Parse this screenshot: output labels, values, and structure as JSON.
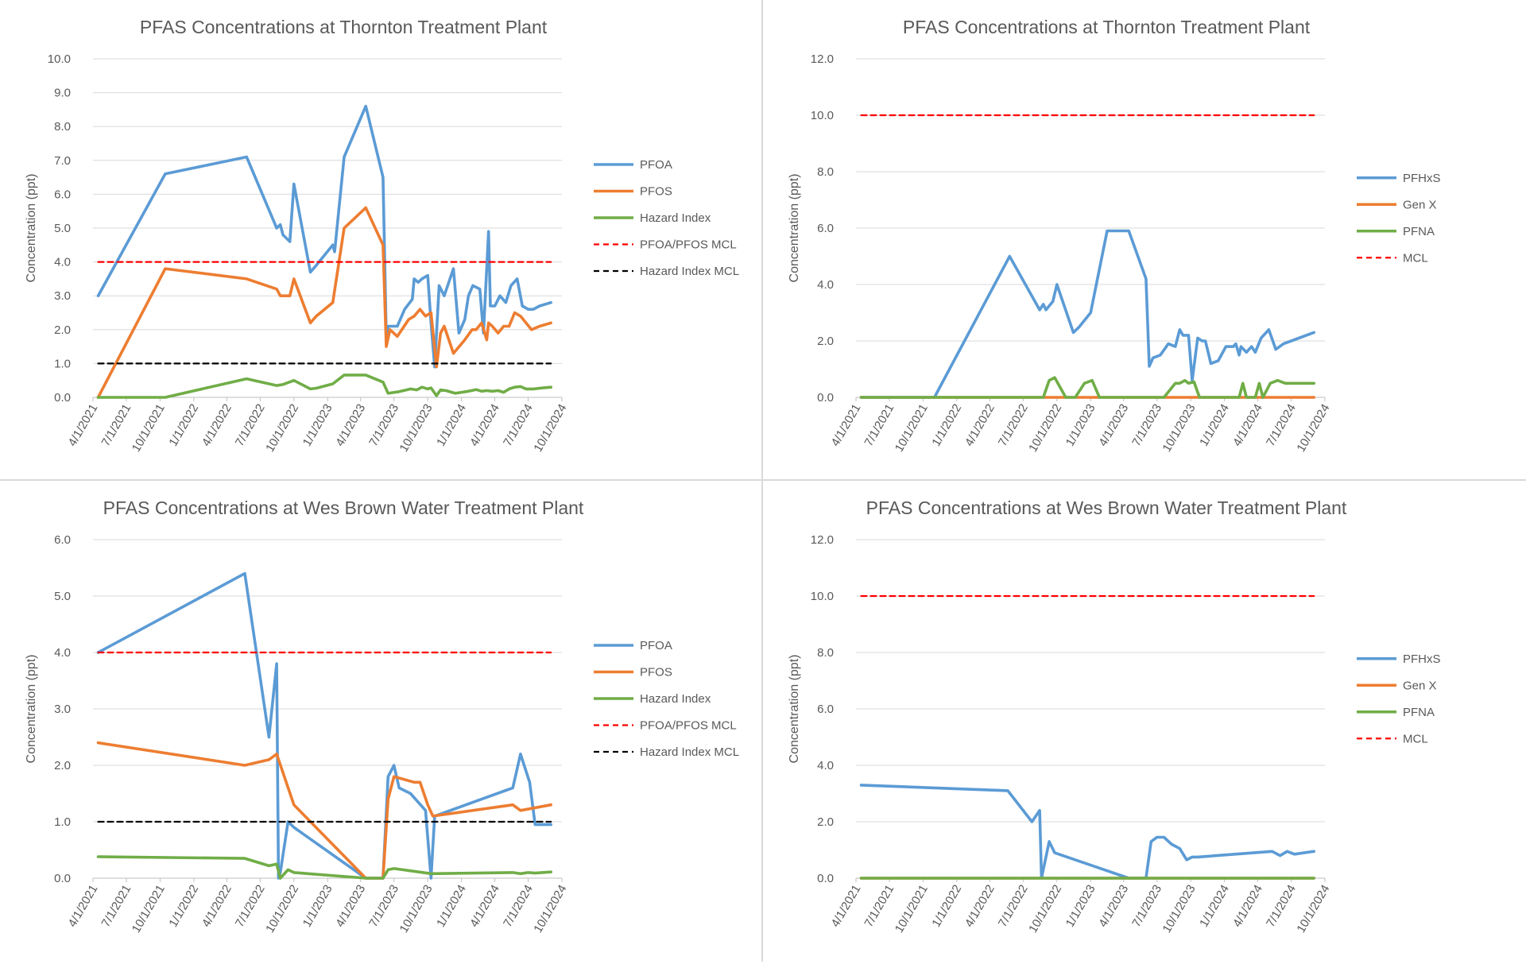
{
  "chart_data": [
    {
      "type": "line",
      "title": "PFAS Concentrations at Thornton Treatment Plant",
      "xlabel": "",
      "ylabel": "Concentration (ppt)",
      "ylim": [
        0,
        10
      ],
      "ytick_step": 1,
      "ytick_labels": [
        "0.0",
        "1.0",
        "2.0",
        "3.0",
        "4.0",
        "5.0",
        "6.0",
        "7.0",
        "8.0",
        "9.0",
        "10.0"
      ],
      "xlim": [
        "4/1/2021",
        "10/1/2024"
      ],
      "xtick_labels": [
        "4/1/2021",
        "7/1/2021",
        "10/1/2021",
        "1/1/2022",
        "4/1/2022",
        "7/1/2022",
        "10/1/2022",
        "1/1/2023",
        "4/1/2023",
        "7/1/2023",
        "10/1/2023",
        "1/1/2024",
        "4/1/2024",
        "7/1/2024",
        "10/1/2024"
      ],
      "gridlines": "horizontal",
      "legend_position": "right",
      "series": [
        {
          "name": "PFOA",
          "color": "#5b9bd5",
          "style": "solid",
          "x": [
            "2021-04-15",
            "2021-10-15",
            "2022-05-25",
            "2022-08-15",
            "2022-08-25",
            "2022-09-01",
            "2022-09-20",
            "2022-10-01",
            "2022-11-15",
            "2022-12-01",
            "2023-01-15",
            "2023-01-20",
            "2023-02-15",
            "2023-04-15",
            "2023-06-01",
            "2023-06-10",
            "2023-06-15",
            "2023-06-25",
            "2023-07-10",
            "2023-07-30",
            "2023-08-20",
            "2023-08-25",
            "2023-09-05",
            "2023-09-15",
            "2023-10-01",
            "2023-10-10",
            "2023-10-20",
            "2023-11-01",
            "2023-11-15",
            "2023-12-10",
            "2023-12-25",
            "2024-01-10",
            "2024-01-20",
            "2024-02-01",
            "2024-02-20",
            "2024-03-01",
            "2024-03-15",
            "2024-03-20",
            "2024-04-01",
            "2024-04-15",
            "2024-05-01",
            "2024-05-15",
            "2024-06-01",
            "2024-06-15",
            "2024-07-01",
            "2024-07-15",
            "2024-08-01",
            "2024-09-01"
          ],
          "y": [
            3.0,
            6.6,
            7.1,
            5.0,
            5.1,
            4.8,
            4.6,
            6.3,
            3.7,
            3.9,
            4.5,
            4.3,
            7.1,
            8.6,
            6.5,
            1.8,
            2.1,
            2.1,
            2.1,
            2.6,
            2.9,
            3.5,
            3.4,
            3.5,
            3.6,
            2.2,
            0.9,
            3.3,
            3.0,
            3.8,
            1.9,
            2.3,
            3.0,
            3.3,
            3.2,
            1.9,
            4.9,
            2.7,
            2.7,
            3.0,
            2.8,
            3.3,
            3.5,
            2.7,
            2.6,
            2.6,
            2.7,
            2.8
          ]
        },
        {
          "name": "PFOS",
          "color": "#ed7d31",
          "style": "solid",
          "x": [
            "2021-04-15",
            "2021-10-15",
            "2022-05-25",
            "2022-08-15",
            "2022-08-25",
            "2022-09-20",
            "2022-10-01",
            "2022-11-15",
            "2022-12-01",
            "2023-01-15",
            "2023-02-15",
            "2023-04-15",
            "2023-06-01",
            "2023-06-10",
            "2023-06-20",
            "2023-07-10",
            "2023-08-10",
            "2023-08-25",
            "2023-09-10",
            "2023-09-25",
            "2023-10-10",
            "2023-10-25",
            "2023-11-05",
            "2023-11-15",
            "2023-12-10",
            "2024-01-10",
            "2024-01-30",
            "2024-02-10",
            "2024-02-25",
            "2024-03-10",
            "2024-03-15",
            "2024-03-25",
            "2024-04-10",
            "2024-04-25",
            "2024-05-10",
            "2024-05-25",
            "2024-06-10",
            "2024-06-25",
            "2024-07-10",
            "2024-08-01",
            "2024-09-01"
          ],
          "y": [
            0.0,
            3.8,
            3.5,
            3.2,
            3.0,
            3.0,
            3.5,
            2.2,
            2.4,
            2.8,
            5.0,
            5.6,
            4.5,
            1.5,
            2.0,
            1.8,
            2.3,
            2.4,
            2.6,
            2.4,
            2.5,
            0.9,
            1.9,
            2.1,
            1.3,
            1.7,
            2.0,
            2.0,
            2.2,
            1.7,
            2.2,
            2.1,
            1.9,
            2.1,
            2.1,
            2.5,
            2.4,
            2.2,
            2.0,
            2.1,
            2.2
          ]
        },
        {
          "name": "Hazard Index",
          "color": "#70ad47",
          "style": "solid",
          "x": [
            "2021-04-15",
            "2021-10-15",
            "2022-05-25",
            "2022-08-15",
            "2022-09-01",
            "2022-10-01",
            "2022-11-15",
            "2022-12-01",
            "2023-01-15",
            "2023-02-15",
            "2023-04-15",
            "2023-06-01",
            "2023-06-15",
            "2023-07-15",
            "2023-08-15",
            "2023-09-01",
            "2023-09-15",
            "2023-10-01",
            "2023-10-10",
            "2023-10-25",
            "2023-11-05",
            "2023-11-20",
            "2023-12-15",
            "2024-01-20",
            "2024-02-10",
            "2024-02-25",
            "2024-03-10",
            "2024-03-25",
            "2024-04-10",
            "2024-04-25",
            "2024-05-10",
            "2024-05-25",
            "2024-06-10",
            "2024-06-25",
            "2024-07-15",
            "2024-08-10",
            "2024-09-01"
          ],
          "y": [
            0.0,
            0.0,
            0.55,
            0.35,
            0.38,
            0.5,
            0.25,
            0.27,
            0.4,
            0.66,
            0.66,
            0.45,
            0.12,
            0.17,
            0.25,
            0.22,
            0.3,
            0.25,
            0.28,
            0.05,
            0.22,
            0.2,
            0.12,
            0.18,
            0.23,
            0.18,
            0.2,
            0.18,
            0.2,
            0.15,
            0.25,
            0.3,
            0.32,
            0.25,
            0.25,
            0.28,
            0.3
          ]
        },
        {
          "name": "PFOA/PFOS MCL",
          "color": "#ff0000",
          "style": "dashed",
          "x": [
            "2021-04-15",
            "2024-09-01"
          ],
          "y": [
            4.0,
            4.0
          ]
        },
        {
          "name": "Hazard Index MCL",
          "color": "#000000",
          "style": "dashed",
          "x": [
            "2021-04-15",
            "2024-09-01"
          ],
          "y": [
            1.0,
            1.0
          ]
        }
      ]
    },
    {
      "type": "line",
      "title": "PFAS Concentrations at Thornton Treatment Plant",
      "xlabel": "",
      "ylabel": "Concentration (ppt)",
      "ylim": [
        0,
        12
      ],
      "ytick_step": 2,
      "ytick_labels": [
        "0.0",
        "2.0",
        "4.0",
        "6.0",
        "8.0",
        "10.0",
        "12.0"
      ],
      "xlim": [
        "4/1/2021",
        "10/1/2024"
      ],
      "xtick_labels": [
        "4/1/2021",
        "7/1/2021",
        "10/1/2021",
        "1/1/2022",
        "4/1/2022",
        "7/1/2022",
        "10/1/2022",
        "1/1/2023",
        "4/1/2023",
        "7/1/2023",
        "10/1/2023",
        "1/1/2024",
        "4/1/2024",
        "7/1/2024",
        "10/1/2024"
      ],
      "gridlines": "horizontal",
      "legend_position": "right",
      "series": [
        {
          "name": "PFHxS",
          "color": "#5b9bd5",
          "style": "solid",
          "x": [
            "2021-04-15",
            "2021-11-01",
            "2022-05-25",
            "2022-08-15",
            "2022-08-25",
            "2022-09-01",
            "2022-09-20",
            "2022-10-01",
            "2022-11-15",
            "2022-12-01",
            "2023-01-01",
            "2023-02-15",
            "2023-04-15",
            "2023-06-01",
            "2023-06-10",
            "2023-06-20",
            "2023-07-10",
            "2023-08-01",
            "2023-08-20",
            "2023-09-01",
            "2023-09-10",
            "2023-09-25",
            "2023-10-05",
            "2023-10-20",
            "2023-11-01",
            "2023-11-10",
            "2023-11-25",
            "2023-12-15",
            "2024-01-05",
            "2024-01-25",
            "2024-02-01",
            "2024-02-10",
            "2024-02-15",
            "2024-03-01",
            "2024-03-15",
            "2024-03-25",
            "2024-04-10",
            "2024-05-01",
            "2024-05-20",
            "2024-06-10",
            "2024-07-01",
            "2024-09-01"
          ],
          "y": [
            0,
            0,
            5.0,
            3.1,
            3.3,
            3.1,
            3.4,
            4.0,
            2.3,
            2.5,
            3.0,
            5.9,
            5.9,
            4.2,
            1.1,
            1.4,
            1.5,
            1.9,
            1.8,
            2.4,
            2.2,
            2.2,
            0.6,
            2.1,
            2.0,
            2.0,
            1.2,
            1.3,
            1.8,
            1.8,
            1.9,
            1.5,
            1.8,
            1.6,
            1.8,
            1.6,
            2.1,
            2.4,
            1.7,
            1.9,
            2.0,
            2.3
          ]
        },
        {
          "name": "Gen X",
          "color": "#ed7d31",
          "style": "solid",
          "x": [
            "2021-04-15",
            "2024-09-01"
          ],
          "y": [
            0,
            0
          ]
        },
        {
          "name": "PFNA",
          "color": "#70ad47",
          "style": "solid",
          "x": [
            "2021-04-15",
            "2022-08-25",
            "2022-09-10",
            "2022-09-25",
            "2022-10-25",
            "2022-11-20",
            "2022-12-15",
            "2023-01-05",
            "2023-01-25",
            "2023-07-20",
            "2023-08-20",
            "2023-09-01",
            "2023-09-15",
            "2023-09-25",
            "2023-10-10",
            "2023-10-25",
            "2023-11-15",
            "2024-02-10",
            "2024-02-20",
            "2024-03-01",
            "2024-03-25",
            "2024-04-05",
            "2024-04-15",
            "2024-05-05",
            "2024-05-25",
            "2024-06-15",
            "2024-09-01"
          ],
          "y": [
            0,
            0,
            0.6,
            0.7,
            0.0,
            0.0,
            0.5,
            0.6,
            0.0,
            0.0,
            0.5,
            0.5,
            0.6,
            0.5,
            0.55,
            0.0,
            0.0,
            0.0,
            0.5,
            0.0,
            0.0,
            0.5,
            0.0,
            0.5,
            0.6,
            0.5,
            0.5
          ]
        },
        {
          "name": "MCL",
          "color": "#ff0000",
          "style": "dashed",
          "x": [
            "2021-04-15",
            "2024-09-01"
          ],
          "y": [
            10.0,
            10.0
          ]
        }
      ]
    },
    {
      "type": "line",
      "title": "PFAS Concentrations at Wes Brown Water Treatment Plant",
      "xlabel": "",
      "ylabel": "Concentration (ppt)",
      "ylim": [
        0,
        6
      ],
      "ytick_step": 1,
      "ytick_labels": [
        "0.0",
        "1.0",
        "2.0",
        "3.0",
        "4.0",
        "5.0",
        "6.0"
      ],
      "xlim": [
        "4/1/2021",
        "10/1/2024"
      ],
      "xtick_labels": [
        "4/1/2021",
        "7/1/2021",
        "10/1/2021",
        "1/1/2022",
        "4/1/2022",
        "7/1/2022",
        "10/1/2022",
        "1/1/2023",
        "4/1/2023",
        "7/1/2023",
        "10/1/2023",
        "1/1/2024",
        "4/1/2024",
        "7/1/2024",
        "10/1/2024"
      ],
      "gridlines": "horizontal",
      "legend_position": "right",
      "series": [
        {
          "name": "PFOA",
          "color": "#5b9bd5",
          "style": "solid",
          "x": [
            "2021-04-15",
            "2022-05-20",
            "2022-07-25",
            "2022-08-15",
            "2022-08-20",
            "2022-08-25",
            "2022-09-15",
            "2022-10-01",
            "2023-04-15",
            "2023-06-01",
            "2023-06-15",
            "2023-07-01",
            "2023-07-15",
            "2023-08-15",
            "2023-09-25",
            "2023-10-10",
            "2023-10-20",
            "2024-05-20",
            "2024-06-10",
            "2024-07-05",
            "2024-07-20",
            "2024-09-01"
          ],
          "y": [
            4.0,
            5.4,
            2.5,
            3.8,
            0.0,
            0.1,
            1.0,
            0.9,
            0.0,
            0.0,
            1.8,
            2.0,
            1.6,
            1.5,
            1.2,
            0.0,
            1.1,
            1.6,
            2.2,
            1.7,
            0.95,
            0.95
          ]
        },
        {
          "name": "PFOS",
          "color": "#ed7d31",
          "style": "solid",
          "x": [
            "2021-04-15",
            "2022-05-20",
            "2022-07-25",
            "2022-08-15",
            "2022-10-01",
            "2023-04-15",
            "2023-06-01",
            "2023-06-15",
            "2023-07-01",
            "2023-08-25",
            "2023-09-10",
            "2023-10-01",
            "2023-10-15",
            "2024-05-20",
            "2024-06-10",
            "2024-09-01"
          ],
          "y": [
            2.4,
            2.0,
            2.1,
            2.2,
            1.3,
            0.0,
            0.0,
            1.4,
            1.8,
            1.7,
            1.7,
            1.3,
            1.1,
            1.3,
            1.2,
            1.3
          ]
        },
        {
          "name": "Hazard Index",
          "color": "#70ad47",
          "style": "solid",
          "x": [
            "2021-04-15",
            "2022-05-20",
            "2022-07-25",
            "2022-08-15",
            "2022-08-25",
            "2022-09-15",
            "2022-10-01",
            "2023-04-15",
            "2023-06-01",
            "2023-06-15",
            "2023-07-01",
            "2023-10-10",
            "2024-05-20",
            "2024-06-10",
            "2024-07-01",
            "2024-07-20",
            "2024-09-01"
          ],
          "y": [
            0.38,
            0.35,
            0.22,
            0.25,
            0.0,
            0.15,
            0.1,
            0.0,
            0.0,
            0.15,
            0.17,
            0.08,
            0.1,
            0.08,
            0.1,
            0.09,
            0.11
          ]
        },
        {
          "name": "PFOA/PFOS MCL",
          "color": "#ff0000",
          "style": "dashed",
          "x": [
            "2021-04-15",
            "2024-09-01"
          ],
          "y": [
            4.0,
            4.0
          ]
        },
        {
          "name": "Hazard Index MCL",
          "color": "#000000",
          "style": "dashed",
          "x": [
            "2021-04-15",
            "2024-09-01"
          ],
          "y": [
            1.0,
            1.0
          ]
        }
      ]
    },
    {
      "type": "line",
      "title": "PFAS Concentrations at Wes Brown Water Treatment Plant",
      "xlabel": "",
      "ylabel": "Concentration (ppt)",
      "ylim": [
        0,
        12
      ],
      "ytick_step": 2,
      "ytick_labels": [
        "0.0",
        "2.0",
        "4.0",
        "6.0",
        "8.0",
        "10.0",
        "12.0"
      ],
      "xlim": [
        "4/1/2021",
        "10/1/2024"
      ],
      "xtick_labels": [
        "4/1/2021",
        "7/1/2021",
        "10/1/2021",
        "1/1/2022",
        "4/1/2022",
        "7/1/2022",
        "10/1/2022",
        "1/1/2023",
        "4/1/2023",
        "7/1/2023",
        "10/1/2023",
        "1/1/2024",
        "4/1/2024",
        "7/1/2024",
        "10/1/2024"
      ],
      "gridlines": "horizontal",
      "legend_position": "right",
      "series": [
        {
          "name": "PFHxS",
          "color": "#5b9bd5",
          "style": "solid",
          "x": [
            "2021-04-15",
            "2022-05-20",
            "2022-07-25",
            "2022-08-15",
            "2022-08-20",
            "2022-09-10",
            "2022-09-25",
            "2023-04-15",
            "2023-06-01",
            "2023-06-15",
            "2023-07-01",
            "2023-07-20",
            "2023-08-10",
            "2023-09-01",
            "2023-09-20",
            "2023-10-05",
            "2023-10-20",
            "2024-05-10",
            "2024-06-01",
            "2024-06-20",
            "2024-07-10",
            "2024-09-01"
          ],
          "y": [
            3.3,
            3.1,
            2.0,
            2.4,
            0.0,
            1.3,
            0.9,
            0.0,
            0.0,
            1.3,
            1.45,
            1.45,
            1.2,
            1.05,
            0.65,
            0.75,
            0.75,
            0.95,
            0.8,
            0.95,
            0.85,
            0.95
          ]
        },
        {
          "name": "Gen X",
          "color": "#ed7d31",
          "style": "solid",
          "x": [
            "2021-04-15",
            "2024-09-01"
          ],
          "y": [
            0,
            0
          ]
        },
        {
          "name": "PFNA",
          "color": "#70ad47",
          "style": "solid",
          "x": [
            "2021-04-15",
            "2024-09-01"
          ],
          "y": [
            0,
            0
          ]
        },
        {
          "name": "MCL",
          "color": "#ff0000",
          "style": "dashed",
          "x": [
            "2021-04-15",
            "2024-09-01"
          ],
          "y": [
            10.0,
            10.0
          ]
        }
      ]
    }
  ]
}
